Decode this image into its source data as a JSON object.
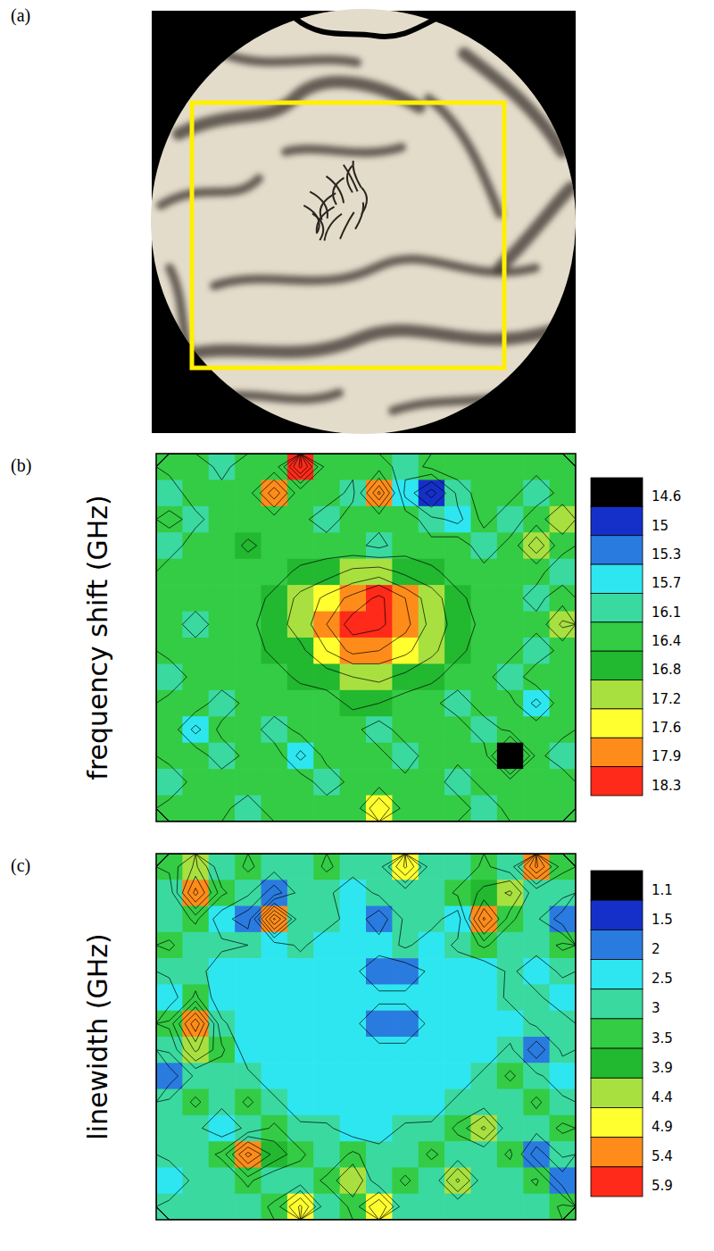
{
  "chart_data": [
    {
      "type": "image",
      "panel_label": "(a)"
    },
    {
      "type": "contour",
      "panel_label": "(b)",
      "y_label": "frequency shift (GHz)",
      "tick_labels": false,
      "colorbar": {
        "ticks": [
          14.6,
          15.0,
          15.3,
          15.7,
          16.1,
          16.4,
          16.8,
          17.2,
          17.6,
          17.9,
          18.3
        ],
        "colors": [
          "#000000",
          "#1530c8",
          "#2a7be0",
          "#2ee6f0",
          "#3ad9a0",
          "#33cc44",
          "#22b830",
          "#a8e040",
          "#ffff30",
          "#ff8c1a",
          "#ff2a1a"
        ]
      },
      "cells": [
        [
          16.5,
          16.6,
          16.3,
          16.6,
          16.5,
          18.4,
          16.6,
          16.5,
          16.6,
          16.2,
          16.5,
          16.6,
          16.5,
          16.6,
          16.5,
          16.6
        ],
        [
          16.2,
          16.6,
          16.5,
          16.6,
          17.9,
          16.5,
          16.6,
          16.3,
          18.0,
          16.0,
          15.1,
          16.2,
          16.6,
          16.5,
          16.2,
          16.5
        ],
        [
          16.5,
          16.3,
          16.6,
          16.5,
          16.6,
          16.5,
          16.2,
          16.6,
          16.5,
          16.6,
          16.2,
          16.0,
          16.5,
          16.2,
          16.6,
          17.2
        ],
        [
          16.2,
          16.6,
          16.5,
          16.9,
          16.6,
          16.5,
          16.6,
          16.5,
          16.3,
          16.6,
          16.5,
          16.6,
          16.2,
          16.5,
          17.5,
          16.5
        ],
        [
          16.6,
          16.5,
          16.6,
          16.5,
          16.6,
          16.9,
          17.0,
          17.3,
          17.4,
          17.1,
          16.9,
          16.6,
          16.5,
          16.6,
          16.5,
          16.2
        ],
        [
          16.5,
          16.6,
          16.5,
          16.6,
          16.9,
          17.3,
          17.7,
          18.0,
          18.4,
          17.9,
          17.4,
          16.9,
          16.6,
          16.5,
          16.3,
          16.6
        ],
        [
          16.6,
          16.2,
          16.6,
          16.7,
          17.0,
          17.4,
          17.9,
          18.5,
          18.4,
          18.0,
          17.5,
          17.0,
          16.7,
          16.6,
          16.5,
          17.3
        ],
        [
          16.5,
          16.6,
          16.5,
          16.6,
          16.9,
          17.1,
          17.6,
          18.0,
          17.9,
          17.7,
          17.3,
          16.9,
          16.6,
          16.5,
          16.2,
          16.5
        ],
        [
          16.2,
          16.5,
          16.6,
          16.5,
          16.6,
          16.9,
          17.0,
          17.2,
          17.3,
          17.1,
          16.9,
          16.6,
          16.5,
          16.2,
          16.6,
          16.5
        ],
        [
          16.5,
          16.6,
          16.2,
          16.5,
          16.6,
          16.5,
          16.6,
          16.9,
          16.8,
          16.6,
          16.5,
          16.2,
          16.6,
          16.5,
          16.0,
          16.6
        ],
        [
          16.6,
          16.0,
          16.5,
          16.6,
          16.2,
          16.5,
          16.6,
          16.5,
          16.2,
          16.6,
          16.5,
          16.6,
          16.2,
          16.5,
          16.6,
          16.5
        ],
        [
          16.5,
          16.6,
          16.2,
          16.5,
          16.6,
          16.0,
          16.5,
          16.6,
          16.5,
          16.2,
          16.6,
          16.5,
          16.6,
          14.9,
          16.5,
          16.2
        ],
        [
          16.2,
          16.5,
          16.6,
          16.6,
          16.5,
          16.6,
          16.2,
          16.5,
          16.6,
          16.5,
          16.6,
          16.2,
          16.5,
          16.6,
          16.5,
          16.6
        ],
        [
          16.5,
          16.6,
          16.5,
          16.2,
          16.6,
          16.5,
          16.6,
          16.5,
          17.6,
          16.6,
          16.5,
          16.6,
          16.2,
          16.5,
          16.6,
          16.5
        ]
      ]
    },
    {
      "type": "contour",
      "panel_label": "(c)",
      "y_label": "linewidth (GHz)",
      "tick_labels": false,
      "colorbar": {
        "ticks": [
          1.1,
          1.5,
          2.0,
          2.5,
          3.0,
          3.5,
          3.9,
          4.4,
          4.9,
          5.4,
          5.9
        ],
        "colors": [
          "#000000",
          "#1530c8",
          "#2a7be0",
          "#2ee6f0",
          "#3ad9a0",
          "#33cc44",
          "#22b830",
          "#a8e040",
          "#ffff30",
          "#ff8c1a",
          "#ff2a1a"
        ]
      },
      "cells": [
        [
          3.6,
          4.5,
          3.1,
          3.6,
          3.2,
          3.1,
          3.6,
          3.2,
          3.3,
          5.0,
          3.2,
          3.1,
          3.6,
          3.2,
          5.5,
          3.6
        ],
        [
          3.2,
          5.6,
          3.6,
          3.1,
          2.2,
          3.2,
          3.1,
          2.7,
          3.1,
          3.2,
          3.1,
          3.6,
          4.0,
          4.5,
          3.1,
          3.2
        ],
        [
          3.1,
          3.6,
          2.7,
          2.2,
          5.5,
          3.1,
          3.2,
          2.8,
          2.2,
          3.1,
          3.2,
          2.7,
          5.5,
          3.6,
          3.1,
          2.2
        ],
        [
          3.6,
          3.1,
          3.1,
          3.0,
          2.7,
          3.1,
          2.7,
          2.6,
          2.7,
          3.1,
          2.7,
          3.1,
          3.6,
          3.1,
          3.2,
          3.6
        ],
        [
          3.1,
          3.2,
          2.7,
          2.6,
          2.6,
          2.7,
          2.6,
          2.6,
          2.2,
          2.2,
          2.6,
          2.7,
          2.6,
          3.1,
          2.7,
          3.1
        ],
        [
          2.7,
          3.6,
          2.6,
          2.7,
          2.6,
          2.6,
          2.6,
          2.6,
          2.6,
          2.6,
          2.6,
          2.6,
          2.7,
          3.1,
          3.1,
          2.7
        ],
        [
          3.6,
          5.8,
          3.1,
          2.6,
          2.6,
          2.6,
          2.6,
          2.6,
          2.2,
          2.2,
          2.6,
          2.6,
          2.6,
          2.7,
          3.1,
          3.2
        ],
        [
          3.1,
          4.5,
          3.6,
          2.7,
          2.6,
          2.6,
          2.6,
          2.6,
          2.6,
          2.6,
          2.6,
          2.6,
          2.7,
          3.1,
          2.2,
          3.1
        ],
        [
          2.2,
          3.1,
          3.2,
          3.1,
          2.7,
          2.6,
          2.6,
          2.6,
          2.6,
          2.6,
          2.6,
          2.7,
          3.1,
          3.6,
          3.1,
          2.7
        ],
        [
          3.1,
          3.6,
          3.1,
          3.6,
          3.1,
          2.7,
          2.6,
          2.6,
          2.6,
          2.6,
          2.7,
          3.1,
          3.2,
          3.1,
          3.6,
          3.1
        ],
        [
          3.2,
          3.1,
          2.7,
          3.1,
          3.6,
          3.1,
          3.1,
          2.7,
          2.7,
          3.1,
          3.1,
          3.6,
          4.5,
          3.1,
          3.2,
          3.6
        ],
        [
          3.1,
          3.2,
          3.6,
          5.6,
          4.2,
          3.6,
          3.1,
          3.6,
          3.2,
          3.1,
          3.6,
          3.2,
          3.1,
          3.6,
          2.2,
          3.1
        ],
        [
          2.7,
          3.1,
          3.1,
          3.6,
          3.1,
          3.2,
          3.6,
          4.4,
          3.1,
          3.6,
          3.1,
          4.5,
          3.2,
          3.1,
          3.6,
          2.2
        ],
        [
          3.1,
          3.2,
          3.1,
          3.2,
          3.6,
          5.0,
          3.1,
          3.6,
          4.9,
          3.1,
          3.2,
          3.1,
          3.1,
          3.2,
          3.1,
          3.6
        ]
      ]
    }
  ]
}
